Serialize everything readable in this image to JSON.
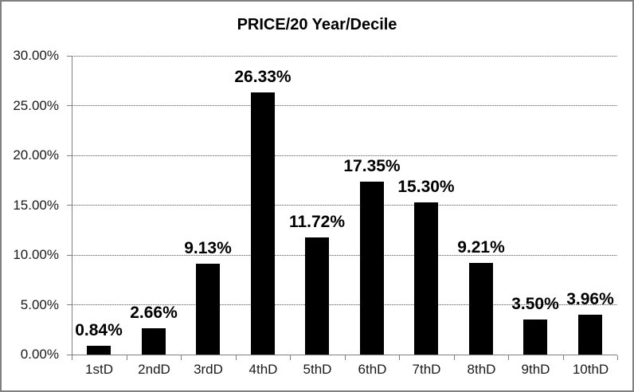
{
  "chart_data": {
    "type": "bar",
    "title": "PRICE/20 Year/Decile",
    "categories": [
      "1stD",
      "2ndD",
      "3rdD",
      "4thD",
      "5thD",
      "6thD",
      "7thD",
      "8thD",
      "9thD",
      "10thD"
    ],
    "values": [
      0.84,
      2.66,
      9.13,
      26.33,
      11.72,
      17.35,
      15.3,
      9.21,
      3.5,
      3.96
    ],
    "data_labels": [
      "0.84%",
      "2.66%",
      "9.13%",
      "26.33%",
      "11.72%",
      "17.35%",
      "15.30%",
      "9.21%",
      "3.50%",
      "3.96%"
    ],
    "y_ticks": [
      {
        "value": 0,
        "label": "0.00%"
      },
      {
        "value": 5,
        "label": "5.00%"
      },
      {
        "value": 10,
        "label": "10.00%"
      },
      {
        "value": 15,
        "label": "15.00%"
      },
      {
        "value": 20,
        "label": "20.00%"
      },
      {
        "value": 25,
        "label": "25.00%"
      },
      {
        "value": 30,
        "label": "30.00%"
      }
    ],
    "ylim": [
      0,
      30
    ],
    "y_major_unit": 5,
    "xlabel": "",
    "ylabel": "",
    "grid": true,
    "legend": "none",
    "bar_color": "#000000",
    "gridline_color": "#8c8c8c",
    "axis_color": "#808080",
    "border_color": "#808080",
    "background_color": "#ffffff",
    "text_color": "#000000"
  }
}
